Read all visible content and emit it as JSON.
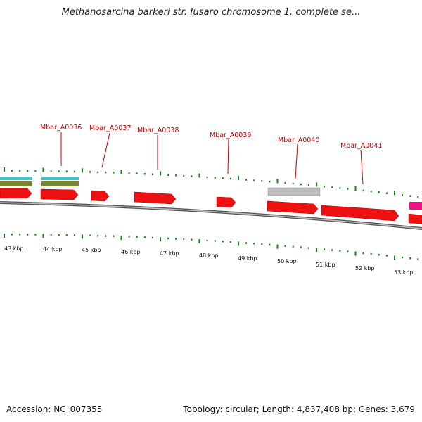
{
  "title": "Methanosarcina barkeri str. fusaro chromosome 1, complete se...",
  "footer": {
    "accession": "Accession: NC_007355",
    "summary": "Topology: circular; Length: 4,837,408 bp; Genes: 3,679"
  },
  "colors": {
    "cds": "#ee1111",
    "cds_highlight": "#ff5555",
    "rna_pink": "#ee1188",
    "pseudo_gray": "#bbbbbb",
    "feature_cyan": "#33cccc",
    "feature_olive": "#778833",
    "tick_green": "#118811",
    "backbone": "#888888",
    "label_red": "#cc0000"
  },
  "scale_labels": [
    "43 kbp",
    "44 kbp",
    "45 kbp",
    "46 kbp",
    "47 kbp",
    "48 kbp",
    "49 kbp",
    "50 kbp",
    "51 kbp",
    "52 kbp",
    "53 kbp"
  ],
  "gene_labels": [
    "Mbar_A0036",
    "Mbar_A0037",
    "Mbar_A0038",
    "Mbar_A0039",
    "Mbar_A0040",
    "Mbar_A0041"
  ]
}
